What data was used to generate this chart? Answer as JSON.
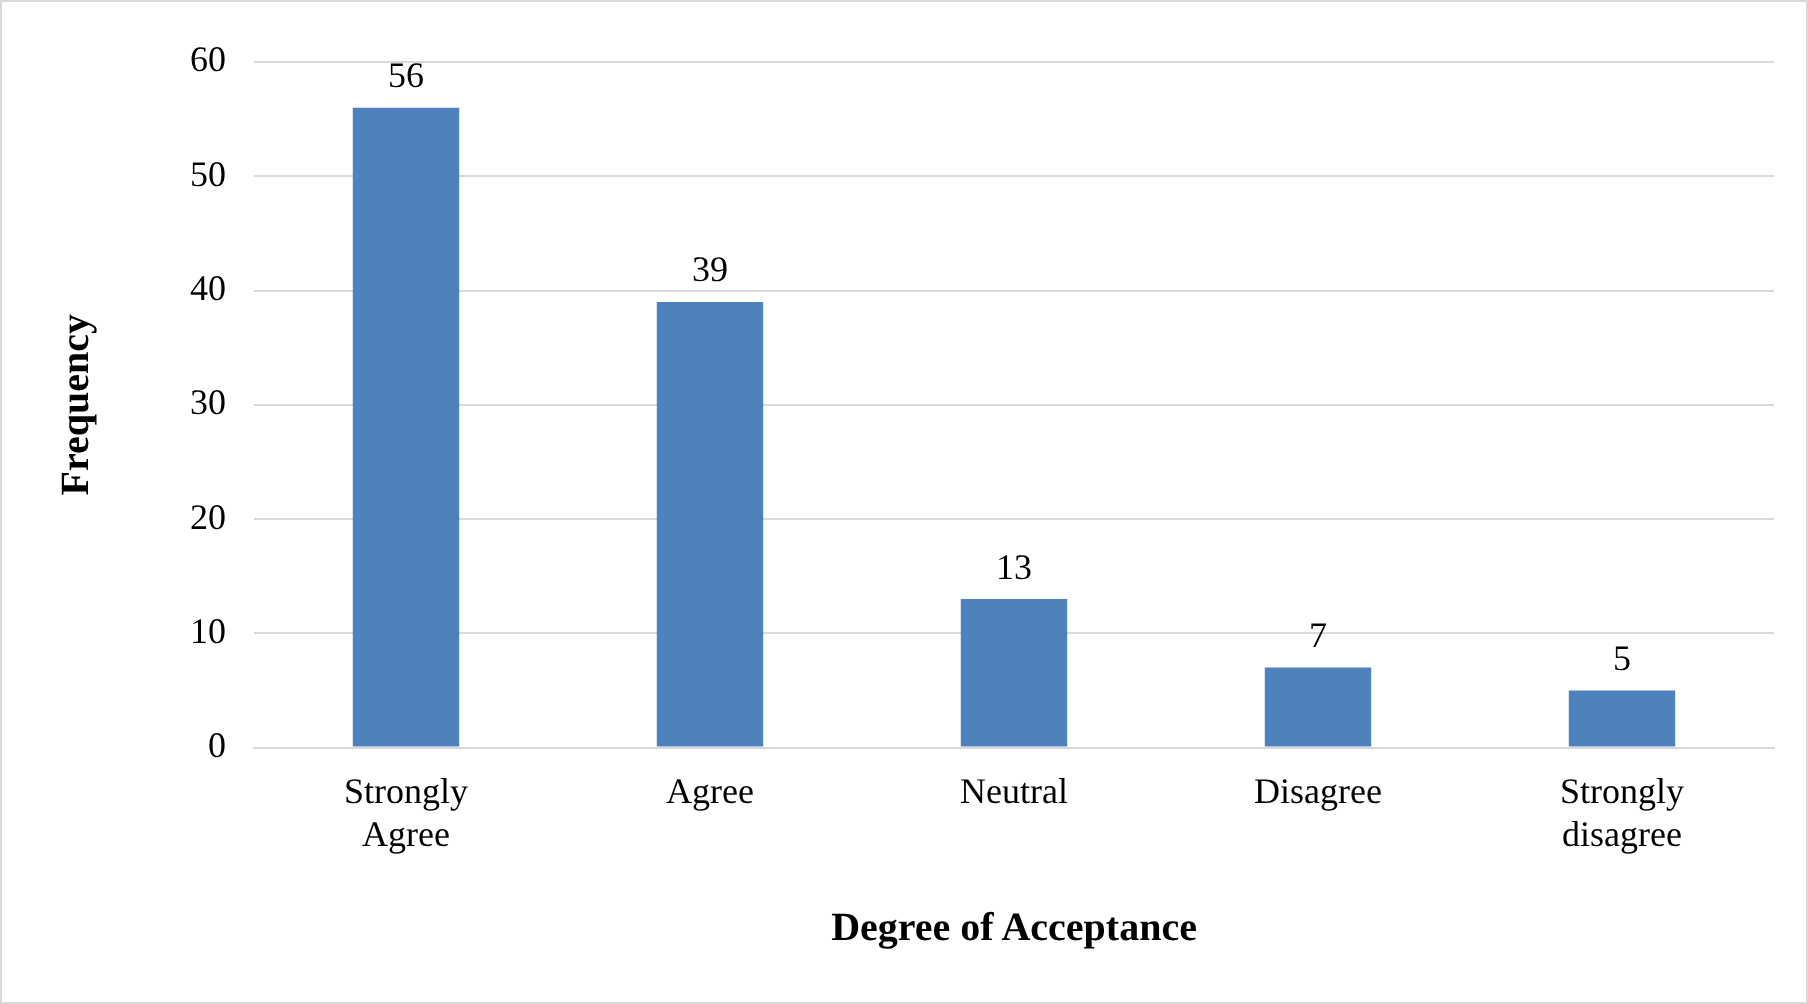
{
  "chart_data": {
    "type": "bar",
    "xlabel": "Degree of Acceptance",
    "ylabel": "Frequency",
    "categories": [
      "Strongly Agree",
      "Agree",
      "Neutral",
      "Disagree",
      "Strongly disagree"
    ],
    "values": [
      56,
      39,
      13,
      7,
      5
    ],
    "color": "#4f81bd",
    "ylim": [
      0,
      60
    ],
    "yticks": [
      0,
      10,
      20,
      30,
      40,
      50,
      60
    ],
    "grid": "y",
    "data_labels": true,
    "legend": false
  }
}
